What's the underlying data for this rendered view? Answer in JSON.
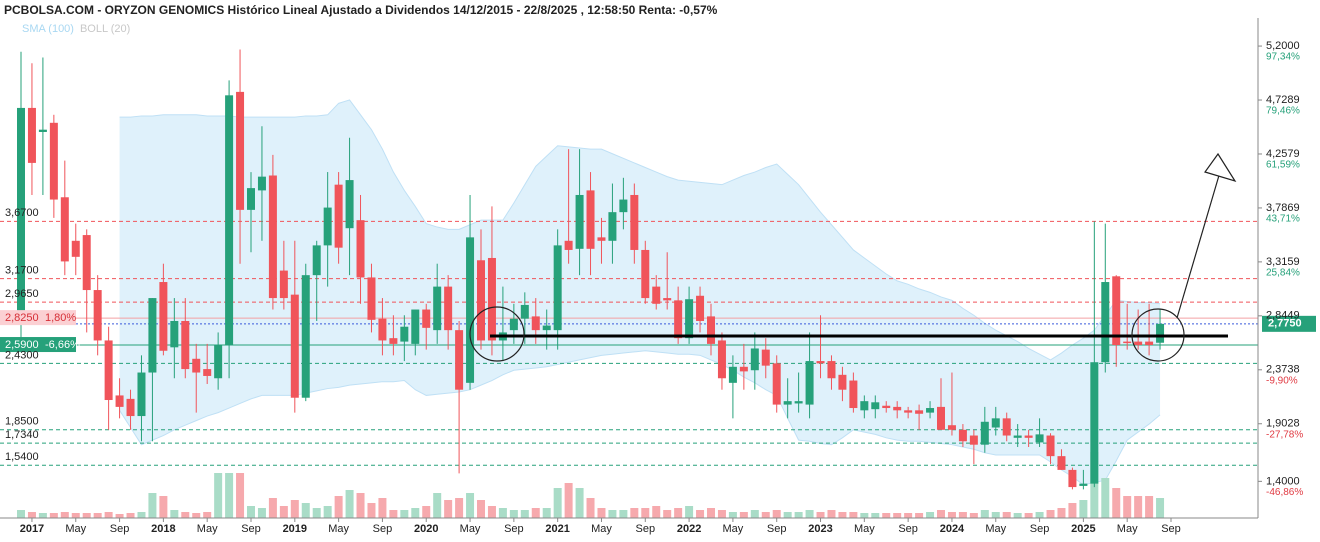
{
  "chart_data": {
    "type": "candlestick",
    "title": "PCBOLSA.COM - ORYZON GENOMICS Histórico Lineal Ajustado a Dividendos 14/12/2015 - 22/8/2025 , 12:58:50 Renta: -0,57%",
    "indicators": [
      {
        "name": "SMA (100)",
        "color": "#a9d8f2"
      },
      {
        "name": "BOLL (20)",
        "color": "#c8c8c8"
      }
    ],
    "up_color": "#26a17a",
    "down_color": "#f0545a",
    "up_volume_color": "#a9dcc7",
    "down_volume_color": "#f6a9ad",
    "band_color": "#d7edfa",
    "categories": [
      null,
      "2017",
      null,
      null,
      null,
      "May",
      null,
      null,
      null,
      "Sep",
      null,
      null,
      null,
      "2018",
      null,
      null,
      null,
      "May",
      null,
      null,
      null,
      "Sep",
      null,
      null,
      null,
      "2019",
      null,
      null,
      null,
      "May",
      null,
      null,
      null,
      "Sep",
      null,
      null,
      null,
      "2020",
      null,
      null,
      null,
      "May",
      null,
      null,
      null,
      "Sep",
      null,
      null,
      null,
      "2021",
      null,
      null,
      null,
      "May",
      null,
      null,
      null,
      "Sep",
      null,
      null,
      null,
      "2022",
      null,
      null,
      null,
      "May",
      null,
      null,
      null,
      "Sep",
      null,
      null,
      null,
      "2023",
      null,
      null,
      null,
      "May",
      null,
      null,
      null,
      "Sep",
      null,
      null,
      null,
      "2024",
      null,
      null,
      null,
      "May",
      null,
      null,
      null,
      "Sep",
      null,
      null,
      null,
      "2025",
      null,
      null,
      null,
      "May",
      null,
      null,
      null,
      "Sep"
    ],
    "open": [
      2.85,
      4.66,
      4.45,
      4.53,
      3.88,
      3.5,
      3.55,
      3.07,
      2.63,
      2.15,
      2.12,
      1.97,
      2.35,
      3.14,
      2.57,
      2.8,
      2.47,
      2.38,
      2.3,
      2.59,
      4.8,
      3.77,
      3.94,
      4.07,
      3.24,
      3.03,
      2.13,
      3.2,
      3.46,
      3.99,
      3.61,
      3.68,
      3.18,
      2.82,
      2.65,
      2.62,
      2.6,
      2.9,
      2.72,
      3.1,
      2.72,
      2.26,
      3.33,
      3.35,
      2.63,
      2.72,
      2.82,
      2.84,
      2.72,
      2.72,
      3.5,
      3.43,
      3.94,
      3.53,
      3.5,
      3.75,
      3.9,
      3.42,
      3.1,
      3.0,
      2.98,
      2.65,
      3.02,
      2.84,
      2.63,
      2.26,
      2.4,
      2.37,
      2.55,
      2.43,
      2.07,
      2.08,
      2.07,
      2.45,
      2.45,
      2.33,
      2.28,
      2.02,
      2.03,
      2.06,
      2.05,
      2.02,
      2.02,
      2.0,
      2.05,
      1.89,
      1.85,
      1.8,
      1.72,
      1.87,
      1.95,
      1.78,
      1.8,
      1.74,
      1.8,
      1.62,
      1.5,
      1.36,
      1.38,
      2.44,
      3.19,
      2.62,
      2.62,
      2.62,
      2.61,
      null
    ],
    "high": [
      5.15,
      5.05,
      5.1,
      4.6,
      4.2,
      3.65,
      3.6,
      3.2,
      2.75,
      2.3,
      2.2,
      2.5,
      3.0,
      3.3,
      3.0,
      3.0,
      2.6,
      2.6,
      2.7,
      4.9,
      5.17,
      4.1,
      4.5,
      4.25,
      3.5,
      3.5,
      3.3,
      3.5,
      4.1,
      4.1,
      4.4,
      3.9,
      3.3,
      3.0,
      2.85,
      2.85,
      2.9,
      2.95,
      3.3,
      3.2,
      2.8,
      3.9,
      3.6,
      3.8,
      3.1,
      2.95,
      3.05,
      3.0,
      2.9,
      3.6,
      4.3,
      4.3,
      4.1,
      3.7,
      4.0,
      4.05,
      4.0,
      3.5,
      3.2,
      3.4,
      3.1,
      3.1,
      3.1,
      2.95,
      2.7,
      2.5,
      2.6,
      2.7,
      2.65,
      2.5,
      2.3,
      2.35,
      2.7,
      2.85,
      2.5,
      2.4,
      2.35,
      2.15,
      2.15,
      2.1,
      2.1,
      2.05,
      2.07,
      2.1,
      2.3,
      2.35,
      1.9,
      1.85,
      2.05,
      2.05,
      2.0,
      1.9,
      1.85,
      1.95,
      1.82,
      1.68,
      1.52,
      1.5,
      3.67,
      3.65,
      3.2,
      2.95,
      2.9,
      2.95,
      2.9,
      null
    ],
    "low": [
      2.65,
      3.9,
      3.9,
      3.7,
      3.2,
      3.2,
      2.7,
      2.5,
      1.85,
      1.95,
      1.85,
      1.75,
      1.75,
      2.5,
      2.3,
      2.3,
      2.0,
      2.25,
      2.2,
      2.3,
      3.3,
      3.4,
      3.5,
      2.9,
      2.9,
      2.0,
      2.1,
      2.8,
      3.1,
      3.3,
      3.2,
      2.95,
      2.7,
      2.5,
      2.5,
      2.45,
      2.5,
      2.55,
      2.6,
      2.55,
      1.47,
      2.2,
      2.55,
      2.5,
      2.45,
      2.6,
      2.6,
      2.6,
      2.55,
      2.55,
      3.3,
      3.2,
      3.2,
      3.3,
      3.3,
      3.6,
      3.3,
      2.95,
      2.9,
      2.9,
      2.6,
      2.6,
      2.7,
      2.5,
      2.2,
      1.95,
      2.2,
      2.2,
      2.3,
      2.0,
      1.95,
      2.0,
      1.95,
      2.3,
      2.2,
      2.1,
      2.0,
      1.95,
      1.95,
      2.0,
      1.95,
      1.95,
      1.85,
      1.95,
      1.85,
      1.8,
      1.7,
      1.55,
      1.65,
      1.8,
      1.75,
      1.7,
      1.7,
      1.7,
      1.55,
      1.5,
      1.33,
      1.33,
      1.35,
      2.35,
      2.4,
      2.55,
      2.55,
      2.5,
      2.55,
      null
    ],
    "close": [
      4.66,
      4.18,
      4.47,
      3.86,
      3.32,
      3.36,
      3.07,
      2.63,
      2.11,
      2.05,
      1.97,
      2.35,
      3.0,
      2.54,
      2.8,
      2.38,
      2.35,
      2.32,
      2.59,
      4.77,
      3.77,
      3.96,
      4.06,
      3.0,
      3.0,
      2.13,
      3.2,
      3.46,
      3.79,
      3.44,
      4.03,
      3.18,
      2.81,
      2.63,
      2.6,
      2.75,
      2.9,
      2.74,
      3.1,
      2.72,
      2.2,
      3.53,
      2.63,
      2.63,
      2.7,
      2.82,
      2.94,
      2.72,
      2.76,
      3.46,
      3.42,
      3.9,
      3.43,
      3.5,
      3.75,
      3.86,
      3.42,
      3.0,
      2.95,
      2.98,
      2.65,
      2.99,
      2.8,
      2.6,
      2.3,
      2.4,
      2.36,
      2.56,
      2.41,
      2.07,
      2.1,
      2.1,
      2.45,
      2.43,
      2.3,
      2.2,
      2.04,
      2.1,
      2.09,
      2.04,
      2.02,
      2.0,
      1.99,
      2.04,
      1.85,
      1.85,
      1.75,
      1.72,
      1.92,
      1.95,
      1.8,
      1.8,
      1.78,
      1.81,
      1.62,
      1.5,
      1.35,
      1.38,
      2.44,
      3.14,
      2.59,
      2.61,
      2.59,
      2.59,
      2.775,
      null
    ],
    "volume": [
      8,
      6,
      5,
      5,
      6,
      5,
      5,
      5,
      6,
      4,
      5,
      6,
      25,
      22,
      8,
      6,
      5,
      6,
      45,
      45,
      45,
      12,
      10,
      20,
      12,
      18,
      15,
      10,
      12,
      22,
      28,
      25,
      15,
      20,
      8,
      8,
      10,
      12,
      25,
      18,
      20,
      25,
      18,
      12,
      10,
      8,
      8,
      10,
      10,
      30,
      35,
      30,
      20,
      10,
      8,
      8,
      10,
      10,
      12,
      8,
      10,
      12,
      8,
      10,
      8,
      6,
      6,
      8,
      6,
      8,
      6,
      6,
      8,
      6,
      8,
      6,
      6,
      5,
      5,
      5,
      5,
      5,
      5,
      6,
      8,
      6,
      6,
      5,
      8,
      6,
      6,
      5,
      5,
      6,
      8,
      10,
      15,
      18,
      66,
      40,
      30,
      22,
      22,
      22,
      20,
      null
    ],
    "vlim": [
      0,
      100
    ],
    "boll_upper": [
      null,
      null,
      null,
      null,
      null,
      null,
      null,
      null,
      null,
      4.58,
      4.58,
      4.59,
      4.59,
      4.6,
      4.6,
      4.6,
      4.6,
      4.59,
      4.59,
      4.59,
      4.58,
      4.58,
      4.58,
      4.58,
      4.58,
      4.58,
      4.59,
      4.59,
      4.6,
      4.7,
      4.73,
      4.6,
      4.47,
      4.3,
      4.1,
      3.94,
      3.8,
      3.65,
      3.62,
      3.6,
      3.6,
      3.64,
      3.68,
      3.68,
      3.68,
      3.83,
      3.99,
      4.15,
      4.24,
      4.33,
      4.32,
      4.31,
      4.3,
      4.3,
      4.26,
      4.22,
      4.18,
      4.14,
      4.1,
      4.06,
      4.03,
      4.02,
      4.01,
      4.0,
      3.99,
      4.03,
      4.07,
      4.1,
      4.14,
      4.17,
      4.08,
      3.99,
      3.87,
      3.75,
      3.64,
      3.53,
      3.42,
      3.35,
      3.28,
      3.21,
      3.15,
      3.12,
      3.08,
      3.05,
      3.01,
      2.98,
      2.91,
      2.85,
      2.78,
      2.72,
      2.67,
      2.62,
      2.56,
      2.51,
      2.46,
      2.52,
      2.59,
      2.65,
      2.72,
      2.85,
      2.98,
      2.97,
      2.96,
      2.96,
      2.95,
      null
    ],
    "boll_lower": [
      null,
      null,
      null,
      null,
      null,
      null,
      null,
      null,
      null,
      2.02,
      1.87,
      1.72,
      1.76,
      1.8,
      1.85,
      1.89,
      1.93,
      1.97,
      2.0,
      2.04,
      2.08,
      2.12,
      2.15,
      2.15,
      2.15,
      2.15,
      2.17,
      2.19,
      2.21,
      2.22,
      2.24,
      2.25,
      2.26,
      2.27,
      2.27,
      2.28,
      2.2,
      2.15,
      2.16,
      2.17,
      2.18,
      2.2,
      2.24,
      2.28,
      2.33,
      2.37,
      2.38,
      2.39,
      2.4,
      2.42,
      2.44,
      2.46,
      2.48,
      2.5,
      2.51,
      2.52,
      2.53,
      2.54,
      2.53,
      2.52,
      2.51,
      2.51,
      2.5,
      2.46,
      2.42,
      2.37,
      2.31,
      2.26,
      2.2,
      2.15,
      1.95,
      1.76,
      1.75,
      1.73,
      1.72,
      1.78,
      1.85,
      1.83,
      1.81,
      1.78,
      1.76,
      1.75,
      1.75,
      1.74,
      1.73,
      1.72,
      1.7,
      1.68,
      1.65,
      1.63,
      1.63,
      1.63,
      1.63,
      1.63,
      1.57,
      1.5,
      1.44,
      1.37,
      1.39,
      1.41,
      1.58,
      1.76,
      1.83,
      1.9,
      1.98,
      null
    ],
    "ylim": [
      1.08,
      5.445
    ],
    "yticks": [
      {
        "value": 5.2,
        "label": "5,2000",
        "change": "97,34%"
      },
      {
        "value": 4.7289,
        "label": "4,7289",
        "change": "79,46%"
      },
      {
        "value": 4.2579,
        "label": "4,2579",
        "change": "61,59%"
      },
      {
        "value": 3.7869,
        "label": "3,7869",
        "change": "43,71%"
      },
      {
        "value": 3.3159,
        "label": "3,3159",
        "change": "25,84%"
      },
      {
        "value": 2.8449,
        "label": "2,8449"
      },
      {
        "value": 2.3738,
        "label": "2,3738",
        "change": "-9,90%"
      },
      {
        "value": 1.9028,
        "label": "1,9028",
        "change": "-27,78%"
      },
      {
        "value": 1.4,
        "label": "1,4000",
        "change": "-46,86%"
      }
    ],
    "levels": [
      {
        "value": 3.67,
        "label": "3,6700",
        "color": "#f0545a",
        "style": "dashed"
      },
      {
        "value": 3.17,
        "label": "3,1700",
        "color": "#f0545a",
        "style": "dashed"
      },
      {
        "value": 2.965,
        "label": "2,9650",
        "color": "#f0545a",
        "style": "dashed"
      },
      {
        "value": 2.825,
        "label": "2,8250",
        "change": "1,80%",
        "color": "#f3a0a4",
        "style": "solid"
      },
      {
        "value": 2.59,
        "label": "2,5900",
        "change": "-6,66%",
        "color": "#26a17a",
        "style": "solid"
      },
      {
        "value": 2.43,
        "label": "2,4300",
        "color": "#26a17a",
        "style": "dashed"
      },
      {
        "value": 1.85,
        "label": "1,8500",
        "color": "#26a17a",
        "style": "dashed"
      },
      {
        "value": 1.734,
        "label": "1,7340",
        "color": "#26a17a",
        "style": "dashed"
      },
      {
        "value": 1.54,
        "label": "1,5400",
        "color": "#26a17a",
        "style": "dashed"
      }
    ],
    "last": {
      "value": 2.775,
      "label": "2,7750",
      "color": "#26a17a"
    }
  }
}
